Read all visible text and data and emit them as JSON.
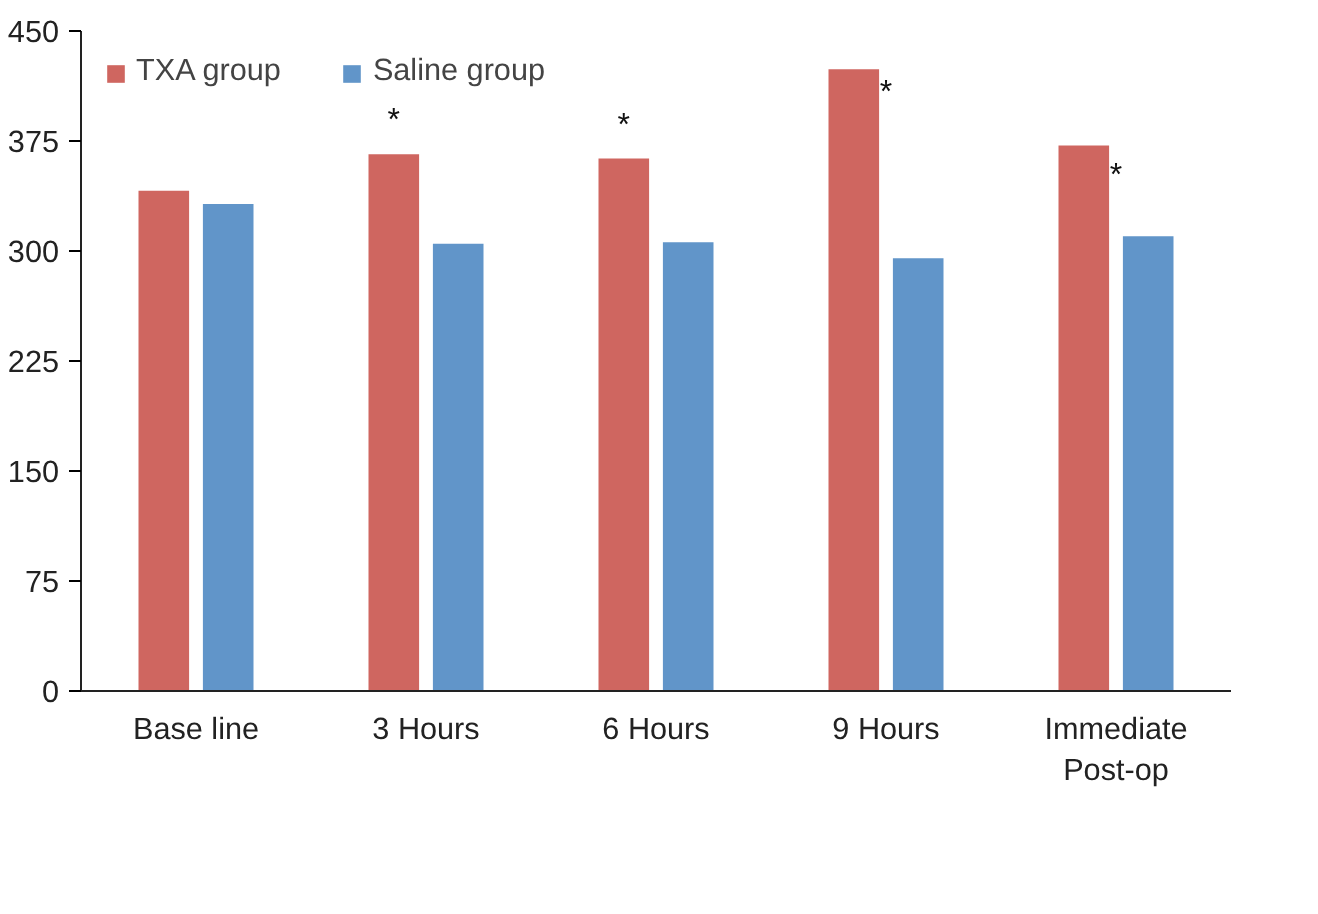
{
  "chart_data": {
    "type": "bar",
    "categories": [
      "Base line",
      "3 Hours",
      "6 Hours",
      "9 Hours",
      "Immediate Post-op"
    ],
    "series": [
      {
        "name": "TXA group",
        "color": "#cf6660",
        "values": [
          341,
          366,
          363,
          424,
          372
        ]
      },
      {
        "name": "Saline group",
        "color": "#6195c9",
        "values": [
          332,
          305,
          306,
          295,
          310
        ]
      }
    ],
    "ylim": [
      0,
      450
    ],
    "yticks": [
      0,
      75,
      150,
      225,
      300,
      375,
      450
    ],
    "grid": false,
    "legend": "top left",
    "annotations": [
      {
        "text": "*",
        "x": "3 Hours",
        "y": 366
      },
      {
        "text": "*",
        "x": "6 Hours",
        "y": 363
      },
      {
        "text": "*",
        "x": "9 Hours",
        "y": 408
      },
      {
        "text": "*",
        "x": "Immediate Post-op",
        "y": 351
      }
    ]
  }
}
